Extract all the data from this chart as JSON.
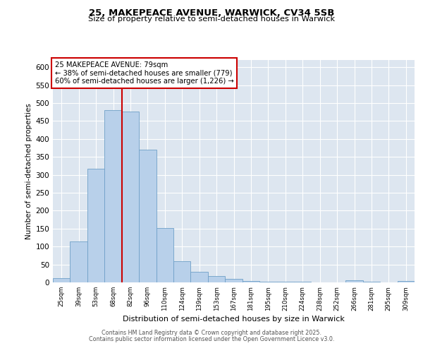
{
  "title_line1": "25, MAKEPEACE AVENUE, WARWICK, CV34 5SB",
  "title_line2": "Size of property relative to semi-detached houses in Warwick",
  "xlabel": "Distribution of semi-detached houses by size in Warwick",
  "ylabel": "Number of semi-detached properties",
  "categories": [
    "25sqm",
    "39sqm",
    "53sqm",
    "68sqm",
    "82sqm",
    "96sqm",
    "110sqm",
    "124sqm",
    "139sqm",
    "153sqm",
    "167sqm",
    "181sqm",
    "195sqm",
    "210sqm",
    "224sqm",
    "238sqm",
    "252sqm",
    "266sqm",
    "281sqm",
    "295sqm",
    "309sqm"
  ],
  "values": [
    12,
    115,
    317,
    480,
    477,
    370,
    152,
    60,
    30,
    17,
    9,
    3,
    2,
    1,
    1,
    0,
    0,
    5,
    1,
    0,
    3
  ],
  "bar_color": "#b8d0ea",
  "bar_edge_color": "#6fa0c8",
  "background_color": "#dde6f0",
  "grid_color": "#ffffff",
  "vline_color": "#cc0000",
  "vline_x": 3.5,
  "annotation_text": "25 MAKEPEACE AVENUE: 79sqm\n← 38% of semi-detached houses are smaller (779)\n60% of semi-detached houses are larger (1,226) →",
  "annotation_box_color": "#ffffff",
  "annotation_box_edge": "#cc0000",
  "ylim": [
    0,
    620
  ],
  "yticks": [
    0,
    50,
    100,
    150,
    200,
    250,
    300,
    350,
    400,
    450,
    500,
    550,
    600
  ],
  "footer_line1": "Contains HM Land Registry data © Crown copyright and database right 2025.",
  "footer_line2": "Contains public sector information licensed under the Open Government Licence v3.0."
}
